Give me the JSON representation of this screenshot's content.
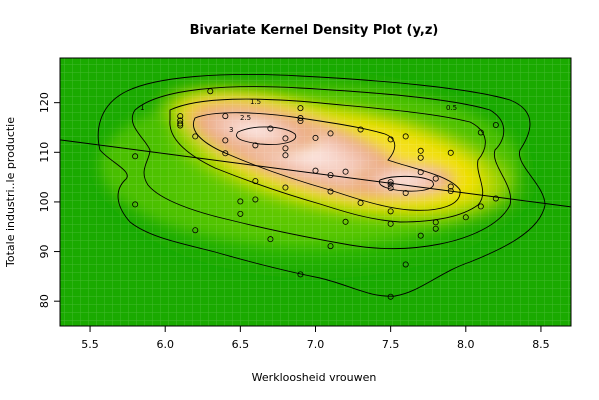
{
  "chart_data": {
    "type": "scatter",
    "title": "Bivariate Kernel Density Plot (y,z)",
    "xlabel": "Werkloosheid vrouwen",
    "ylabel": "Totale industri..le productie",
    "xlim": [
      5.3,
      8.7
    ],
    "ylim": [
      75,
      129
    ],
    "x_ticks": [
      "5.5",
      "6.0",
      "6.5",
      "7.0",
      "7.5",
      "8.0",
      "8.5"
    ],
    "y_ticks": [
      "80",
      "90",
      "100",
      "110",
      "120"
    ],
    "background": "density heatmap (green low to pink/white high) with grid",
    "contour_levels": [
      "0.5",
      "1",
      "1.5",
      "2.5",
      "3"
    ],
    "points": [
      {
        "x": 5.8,
        "y": 109.2
      },
      {
        "x": 5.8,
        "y": 99.5
      },
      {
        "x": 6.1,
        "y": 117.3
      },
      {
        "x": 6.1,
        "y": 116.4
      },
      {
        "x": 6.1,
        "y": 115.8
      },
      {
        "x": 6.1,
        "y": 115.4
      },
      {
        "x": 6.2,
        "y": 113.2
      },
      {
        "x": 6.2,
        "y": 94.3
      },
      {
        "x": 6.3,
        "y": 122.3
      },
      {
        "x": 6.4,
        "y": 117.3
      },
      {
        "x": 6.4,
        "y": 112.4
      },
      {
        "x": 6.4,
        "y": 109.8
      },
      {
        "x": 6.5,
        "y": 100.1
      },
      {
        "x": 6.5,
        "y": 97.6
      },
      {
        "x": 6.6,
        "y": 111.4
      },
      {
        "x": 6.6,
        "y": 104.2
      },
      {
        "x": 6.6,
        "y": 100.5
      },
      {
        "x": 6.7,
        "y": 114.8
      },
      {
        "x": 6.7,
        "y": 92.5
      },
      {
        "x": 6.8,
        "y": 112.8
      },
      {
        "x": 6.8,
        "y": 110.8
      },
      {
        "x": 6.8,
        "y": 109.4
      },
      {
        "x": 6.8,
        "y": 102.9
      },
      {
        "x": 6.9,
        "y": 118.9
      },
      {
        "x": 6.9,
        "y": 116.9
      },
      {
        "x": 6.9,
        "y": 116.3
      },
      {
        "x": 6.9,
        "y": 85.4
      },
      {
        "x": 7.0,
        "y": 112.9
      },
      {
        "x": 7.0,
        "y": 106.3
      },
      {
        "x": 7.1,
        "y": 113.8
      },
      {
        "x": 7.1,
        "y": 105.4
      },
      {
        "x": 7.1,
        "y": 102.1
      },
      {
        "x": 7.1,
        "y": 91.1
      },
      {
        "x": 7.2,
        "y": 106.1
      },
      {
        "x": 7.2,
        "y": 96.0
      },
      {
        "x": 7.3,
        "y": 114.6
      },
      {
        "x": 7.3,
        "y": 99.8
      },
      {
        "x": 7.5,
        "y": 112.6
      },
      {
        "x": 7.5,
        "y": 104.0
      },
      {
        "x": 7.5,
        "y": 103.5
      },
      {
        "x": 7.5,
        "y": 102.8
      },
      {
        "x": 7.5,
        "y": 98.1
      },
      {
        "x": 7.5,
        "y": 95.6
      },
      {
        "x": 7.5,
        "y": 80.9
      },
      {
        "x": 7.6,
        "y": 113.2
      },
      {
        "x": 7.6,
        "y": 101.8
      },
      {
        "x": 7.6,
        "y": 87.4
      },
      {
        "x": 7.7,
        "y": 110.3
      },
      {
        "x": 7.7,
        "y": 108.9
      },
      {
        "x": 7.7,
        "y": 106.0
      },
      {
        "x": 7.7,
        "y": 93.2
      },
      {
        "x": 7.8,
        "y": 104.7
      },
      {
        "x": 7.8,
        "y": 95.9
      },
      {
        "x": 7.8,
        "y": 94.6
      },
      {
        "x": 7.9,
        "y": 109.9
      },
      {
        "x": 7.9,
        "y": 103.1
      },
      {
        "x": 7.9,
        "y": 102.2
      },
      {
        "x": 8.0,
        "y": 96.9
      },
      {
        "x": 8.1,
        "y": 114.0
      },
      {
        "x": 8.1,
        "y": 99.1
      },
      {
        "x": 8.2,
        "y": 115.5
      },
      {
        "x": 8.2,
        "y": 100.7
      }
    ],
    "regression_line": {
      "x": [
        5.3,
        8.7
      ],
      "y": [
        112.5,
        99.0
      ]
    }
  }
}
